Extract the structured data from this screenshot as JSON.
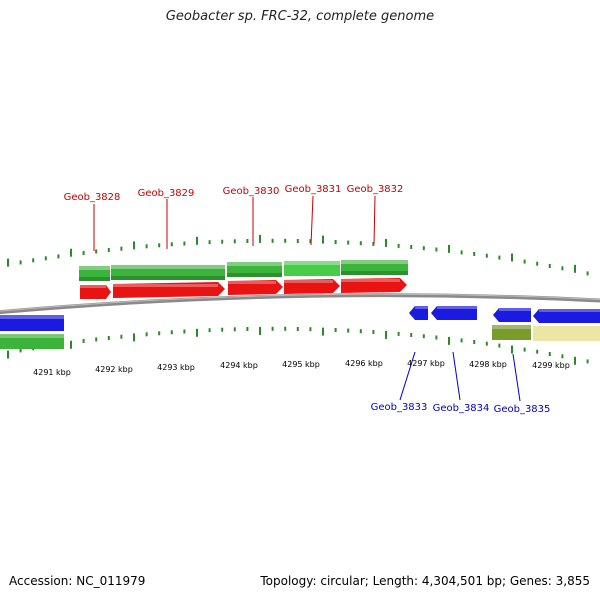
{
  "title": "Geobacter sp. FRC-32, complete genome",
  "footer": {
    "accession": "Accession: NC_011979",
    "summary": "Topology: circular; Length: 4,304,501 bp; Genes: 3,855"
  },
  "colors": {
    "forward_cds": "#e81313",
    "forward_gene": "#3cb43c",
    "reverse_cds": "#1a1ae0",
    "reverse_gene": "#3cb43c",
    "reverse_gene_other": "#7a9a2c",
    "pseudo_gene": "#ece6a6",
    "tick": "#2a8a2a",
    "backbone": "#8a8a8a",
    "forward_label": "#cc0000",
    "reverse_label": "#0000cc"
  },
  "tick_labels": [
    "4291 kbp",
    "4292 kbp",
    "4293 kbp",
    "4294 kbp",
    "4295 kbp",
    "4296 kbp",
    "4297 kbp",
    "4298 kbp",
    "4299 kbp"
  ],
  "forward_labels": [
    "Geob_3828",
    "Geob_3829",
    "Geob_3830",
    "Geob_3831",
    "Geob_3832"
  ],
  "reverse_labels": [
    "Geob_3833",
    "Geob_3834",
    "Geob_3835"
  ]
}
